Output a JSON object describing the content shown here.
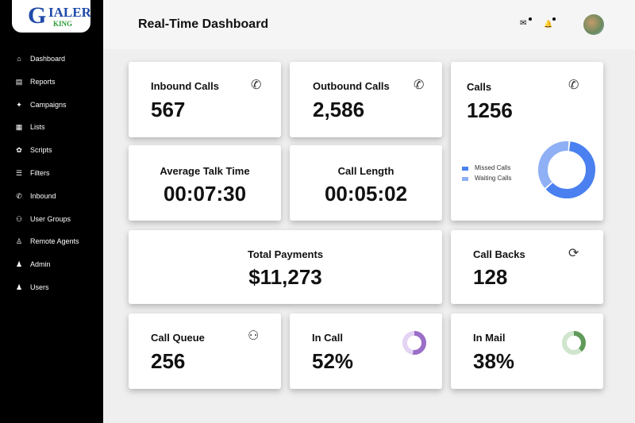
{
  "logo": {
    "text_top": "IALER",
    "text_bottom": "KING"
  },
  "sidebar": {
    "items": [
      {
        "label": "Dashboard",
        "icon": "home-icon",
        "glyph": "⌂"
      },
      {
        "label": "Reports",
        "icon": "report-icon",
        "glyph": "▤"
      },
      {
        "label": "Campaigns",
        "icon": "campaigns-icon",
        "glyph": "✦"
      },
      {
        "label": "Lists",
        "icon": "list-icon",
        "glyph": "▦"
      },
      {
        "label": "Scripts",
        "icon": "scripts-icon",
        "glyph": "✿"
      },
      {
        "label": "Filters",
        "icon": "filters-icon",
        "glyph": "☰"
      },
      {
        "label": "Inbound",
        "icon": "phone-icon",
        "glyph": "✆"
      },
      {
        "label": "User Groups",
        "icon": "user-groups-icon",
        "glyph": "⚇"
      },
      {
        "label": "Remote Agents",
        "icon": "remote-agents-icon",
        "glyph": "♙"
      },
      {
        "label": "Admin",
        "icon": "admin-icon",
        "glyph": "♟"
      },
      {
        "label": "Users",
        "icon": "user-icon",
        "glyph": "♟"
      }
    ]
  },
  "header": {
    "title": "Real-Time Dashboard",
    "mail_glyph": "✉",
    "bell_glyph": "🔔"
  },
  "cards": {
    "inbound": {
      "label": "Inbound Calls",
      "value": "567",
      "glyph": "✆"
    },
    "outbound": {
      "label": "Outbound Calls",
      "value": "2,586",
      "glyph": "✆"
    },
    "calls": {
      "label": "Calls",
      "value": "1256",
      "glyph": "✆",
      "legend": [
        {
          "name": "Missed Calls",
          "color": "#4a80f0",
          "percent": 62
        },
        {
          "name": "Waiting Calls",
          "color": "#8fb0f5",
          "percent": 38
        }
      ]
    },
    "avg_talk": {
      "label": "Average Talk Time",
      "value": "00:07:30"
    },
    "call_length": {
      "label": "Call Length",
      "value": "00:05:02"
    },
    "payments": {
      "label": "Total Payments",
      "value": "$11,273"
    },
    "callbacks": {
      "label": "Call Backs",
      "value": "128",
      "glyph": "⟳"
    },
    "queue": {
      "label": "Call Queue",
      "value": "256",
      "glyph": "⚇"
    },
    "in_call": {
      "label": "In Call",
      "value": "52%",
      "percent": 52,
      "color": "#9b6fc8",
      "track": "#e3d4f3"
    },
    "in_mail": {
      "label": "In Mail",
      "value": "38%",
      "percent": 38,
      "color": "#5f9a5a",
      "track": "#cfe5cc"
    }
  }
}
